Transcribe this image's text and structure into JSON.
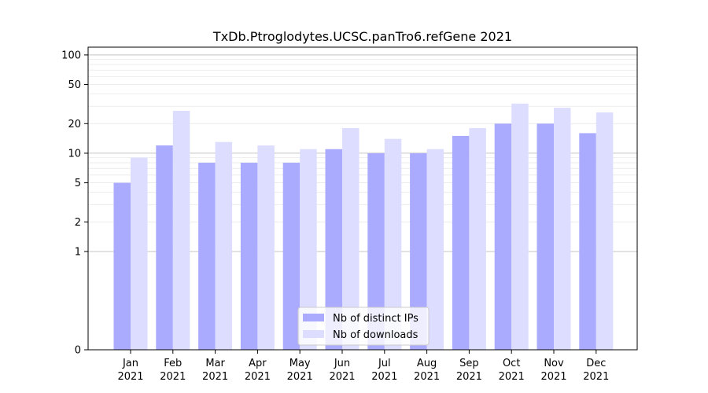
{
  "chart_data": {
    "type": "bar",
    "title": "TxDb.Ptroglodytes.UCSC.panTro6.refGene 2021",
    "xlabel": "",
    "ylabel": "",
    "y_scale": "symlog",
    "ylim": [
      0,
      120
    ],
    "y_ticks": [
      0,
      1,
      2,
      5,
      10,
      20,
      50,
      100
    ],
    "y_tick_labels": [
      "0",
      "1",
      "2",
      "5",
      "10",
      "20",
      "50",
      "100"
    ],
    "grid": "major and minor horizontal",
    "legend_position": "lower-center",
    "categories": [
      {
        "month": "Jan",
        "year": "2021"
      },
      {
        "month": "Feb",
        "year": "2021"
      },
      {
        "month": "Mar",
        "year": "2021"
      },
      {
        "month": "Apr",
        "year": "2021"
      },
      {
        "month": "May",
        "year": "2021"
      },
      {
        "month": "Jun",
        "year": "2021"
      },
      {
        "month": "Jul",
        "year": "2021"
      },
      {
        "month": "Aug",
        "year": "2021"
      },
      {
        "month": "Sep",
        "year": "2021"
      },
      {
        "month": "Oct",
        "year": "2021"
      },
      {
        "month": "Nov",
        "year": "2021"
      },
      {
        "month": "Dec",
        "year": "2021"
      }
    ],
    "series": [
      {
        "name": "Nb of distinct IPs",
        "color": "#aaaaff",
        "values": [
          5,
          12,
          8,
          8,
          8,
          11,
          10,
          10,
          15,
          20,
          20,
          16
        ]
      },
      {
        "name": "Nb of downloads",
        "color": "#ddddff",
        "values": [
          9,
          27,
          13,
          12,
          11,
          18,
          14,
          11,
          18,
          32,
          29,
          26
        ]
      }
    ]
  }
}
